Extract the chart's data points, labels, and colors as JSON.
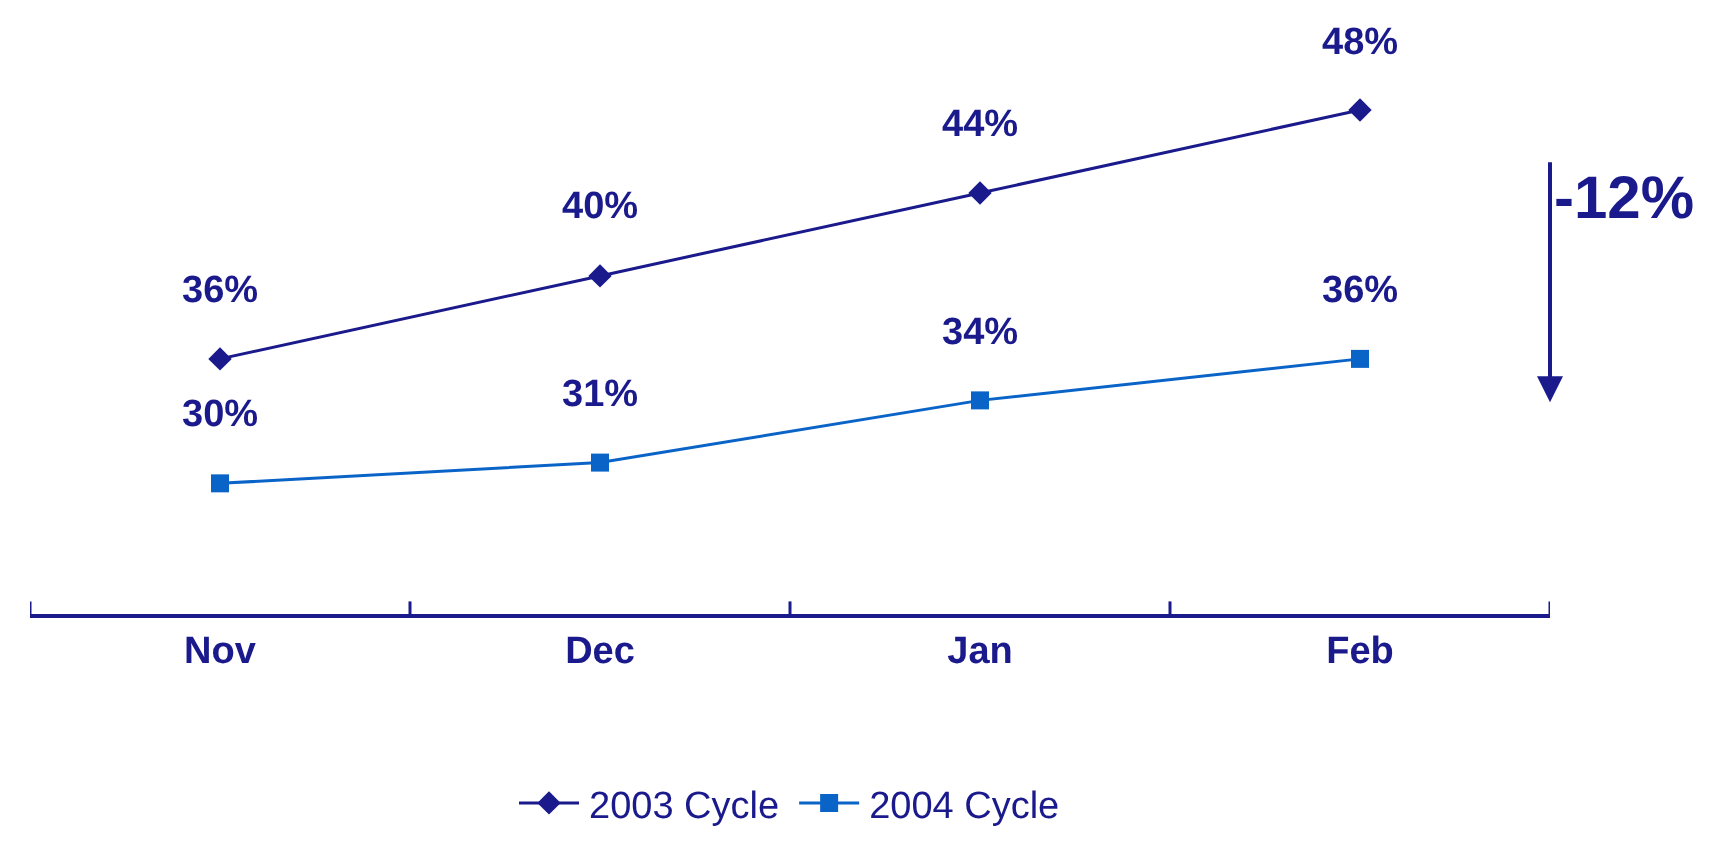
{
  "chart_data": {
    "type": "line",
    "categories": [
      "Nov",
      "Dec",
      "Jan",
      "Feb"
    ],
    "series": [
      {
        "name": "2003 Cycle",
        "color": "#1a1a8c",
        "values": [
          36,
          40,
          44,
          48
        ],
        "value_labels": [
          "36%",
          "40%",
          "44%",
          "48%"
        ],
        "marker": "diamond"
      },
      {
        "name": "2004 Cycle",
        "color": "#0a64c8",
        "values": [
          30,
          31,
          34,
          36
        ],
        "value_labels": [
          "30%",
          "31%",
          "34%",
          "36%"
        ],
        "marker": "square"
      }
    ],
    "legend": "bottom",
    "tick_labels": "x",
    "annotations": [
      "-12%"
    ]
  }
}
